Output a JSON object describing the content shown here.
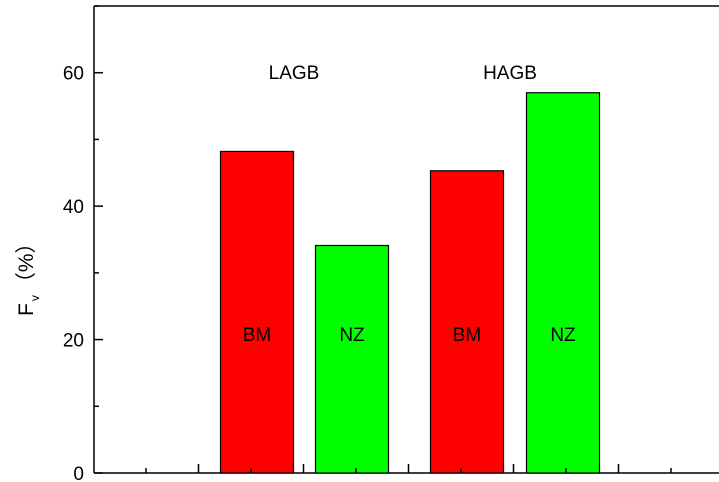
{
  "chart_data": {
    "type": "bar",
    "title": "",
    "xlabel": "",
    "ylabel": "F",
    "ylabel_subscript": "v",
    "ylabel_unit": "（%）",
    "ylim": [
      0,
      70
    ],
    "yticks": [
      0,
      20,
      40,
      60
    ],
    "yticks_labels": [
      "0",
      "20",
      "40",
      "60"
    ],
    "grid": false,
    "legend": "none",
    "groups": [
      {
        "label": "LAGB",
        "bars": [
          {
            "label": "BM",
            "value": 48.2,
            "color": "#ff0000"
          },
          {
            "label": "NZ",
            "value": 34.1,
            "color": "#00ff00"
          }
        ]
      },
      {
        "label": "HAGB",
        "bars": [
          {
            "label": "BM",
            "value": 45.3,
            "color": "#ff0000"
          },
          {
            "label": "NZ",
            "value": 57.0,
            "color": "#00ff00"
          }
        ]
      }
    ]
  }
}
